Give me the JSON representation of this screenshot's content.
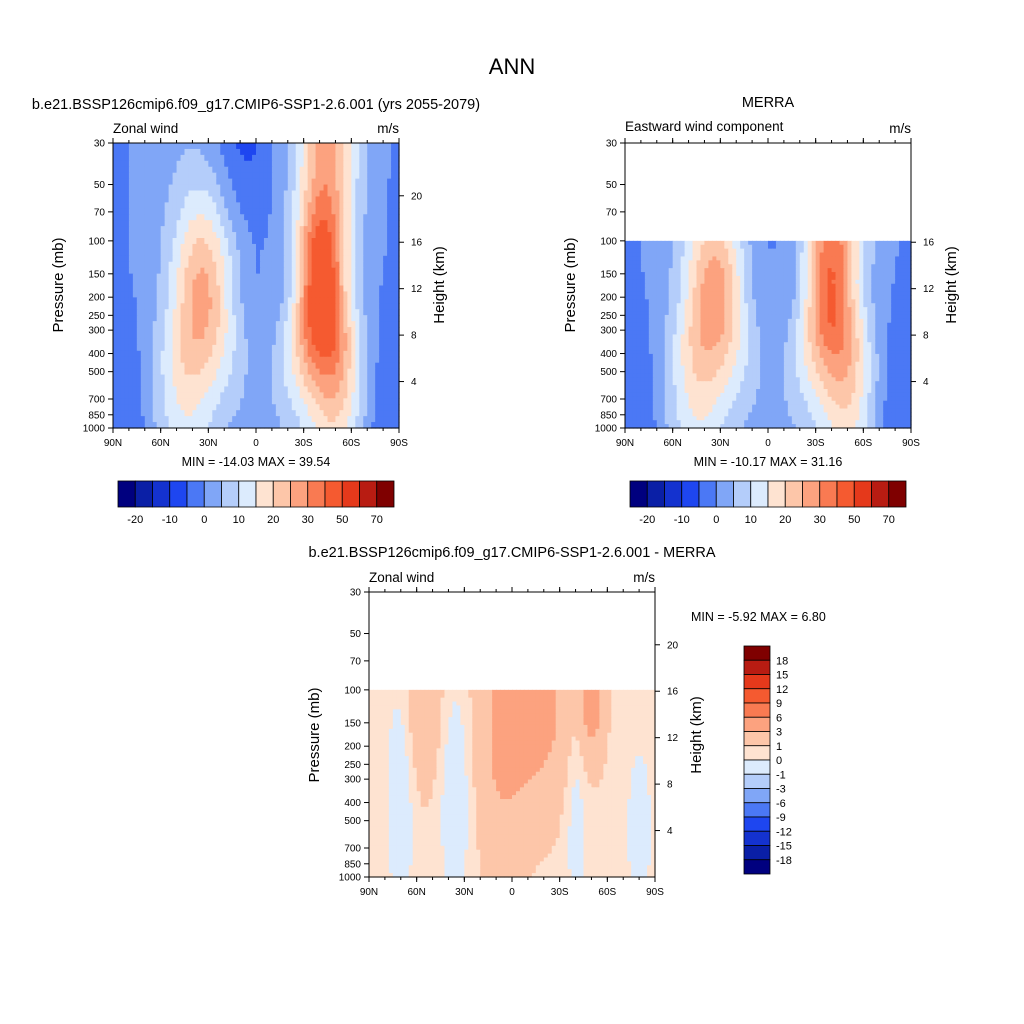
{
  "page": {
    "title": "ANN"
  },
  "palettes": {
    "full": [
      "#00007f",
      "#0a1fa6",
      "#1432cf",
      "#1e46f0",
      "#4b78f5",
      "#80a6f7",
      "#b4cdfa",
      "#dcebfd",
      "#fee3d1",
      "#fdc6a9",
      "#fca27f",
      "#f97a52",
      "#f55a30",
      "#e5391b",
      "#b81c12",
      "#7f0000"
    ],
    "diff": [
      "#00007f",
      "#0a1fa6",
      "#1432cf",
      "#1e46f0",
      "#4b78f5",
      "#80a6f7",
      "#b4cdfa",
      "#dcebfd",
      "#fee3d1",
      "#fdc6a9",
      "#fca27f",
      "#f97a52",
      "#f55a30",
      "#e5391b",
      "#b81c12",
      "#7f0000"
    ]
  },
  "chart_data": [
    {
      "type": "heatmap",
      "title": "b.e21.BSSP126cmip6.f09_g17.CMIP6-SSP1-2.6.001 (yrs 2055-2079)",
      "left_string": "Zonal wind",
      "right_string": "m/s",
      "ylabel": "Pressure (mb)",
      "ylabel_right": "Height (km)",
      "x_ticks": [
        "90N",
        "60N",
        "30N",
        "0",
        "30S",
        "60S",
        "90S"
      ],
      "y_ticks": [
        "30",
        "50",
        "70",
        "100",
        "150",
        "200",
        "250",
        "300",
        "400",
        "500",
        "700",
        "850",
        "1000"
      ],
      "y_right_ticks": [
        "20",
        "16",
        "12",
        "8",
        "4"
      ],
      "ylim": [
        1000,
        30
      ],
      "xlim": [
        90,
        -90
      ],
      "min_max_text": "MIN = -14.03  MAX =  39.54",
      "min": -14.03,
      "max": 39.54,
      "colorbar_labels": [
        "-20",
        "-10",
        "0",
        "10",
        "20",
        "30",
        "50",
        "70"
      ],
      "jets": [
        {
          "lat": 32,
          "p": 200,
          "peak": 22
        },
        {
          "lat": -40,
          "p": 200,
          "peak": 37
        }
      ]
    },
    {
      "type": "heatmap",
      "title": "MERRA",
      "left_string": "Eastward wind component",
      "right_string": "m/s",
      "ylabel": "Pressure (mb)",
      "ylabel_right": "Height (km)",
      "x_ticks": [
        "90N",
        "60N",
        "30N",
        "0",
        "30S",
        "60S",
        "90S"
      ],
      "y_ticks": [
        "30",
        "50",
        "70",
        "100",
        "150",
        "200",
        "250",
        "300",
        "400",
        "500",
        "700",
        "850",
        "1000"
      ],
      "y_right_ticks": [
        "16",
        "12",
        "8",
        "4"
      ],
      "ylim": [
        1000,
        30
      ],
      "xlim": [
        90,
        -90
      ],
      "data_top_p": 100,
      "min_max_text": "MIN = -10.17  MAX =  31.16",
      "min": -10.17,
      "max": 31.16,
      "colorbar_labels": [
        "-20",
        "-10",
        "0",
        "10",
        "20",
        "30",
        "50",
        "70"
      ],
      "jets": [
        {
          "lat": 32,
          "p": 200,
          "peak": 24
        },
        {
          "lat": -38,
          "p": 200,
          "peak": 30
        }
      ]
    },
    {
      "type": "heatmap",
      "title": "b.e21.BSSP126cmip6.f09_g17.CMIP6-SSP1-2.6.001 - MERRA",
      "left_string": "Zonal wind",
      "right_string": "m/s",
      "ylabel": "Pressure (mb)",
      "ylabel_right": "Height (km)",
      "x_ticks": [
        "90N",
        "60N",
        "30N",
        "0",
        "30S",
        "60S",
        "90S"
      ],
      "y_ticks": [
        "30",
        "50",
        "70",
        "100",
        "150",
        "200",
        "250",
        "300",
        "400",
        "500",
        "700",
        "850",
        "1000"
      ],
      "y_right_ticks": [
        "20",
        "16",
        "12",
        "8",
        "4"
      ],
      "ylim": [
        1000,
        30
      ],
      "xlim": [
        90,
        -90
      ],
      "data_top_p": 100,
      "min_max_text": "MIN =  -5.92  MAX =   6.80",
      "min": -5.92,
      "max": 6.8,
      "colorbar_labels": [
        "18",
        "15",
        "12",
        "9",
        "6",
        "3",
        "1",
        "0",
        "-1",
        "-3",
        "-6",
        "-9",
        "-12",
        "-15",
        "-18"
      ]
    }
  ]
}
